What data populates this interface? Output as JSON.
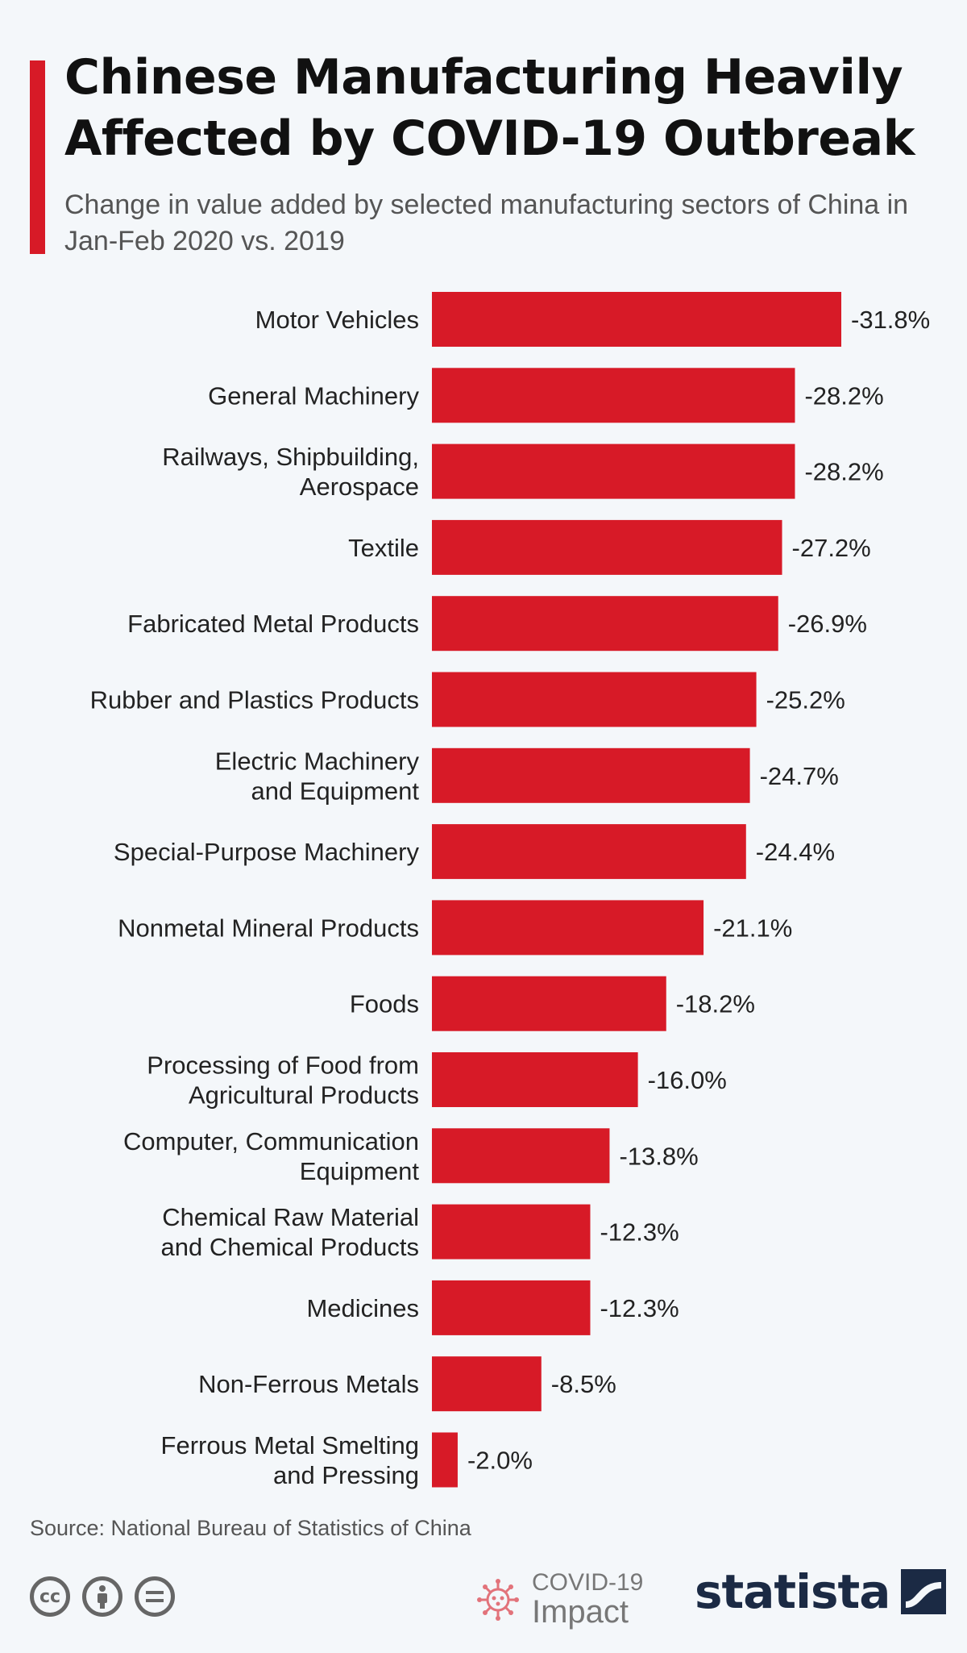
{
  "header": {
    "title": "Chinese Manufacturing Heavily Affected by COVID-19 Outbreak",
    "subtitle": "Change in value added by selected manufacturing sectors of China in Jan-Feb 2020 vs. 2019"
  },
  "chart_data": {
    "type": "bar",
    "orientation": "horizontal",
    "title": "Chinese Manufacturing Heavily Affected by COVID-19 Outbreak",
    "subtitle": "Change in value added by selected manufacturing sectors of China in Jan-Feb 2020 vs. 2019",
    "xlabel": "",
    "ylabel": "",
    "grid": false,
    "legend": "none",
    "bar_color": "#d71a27",
    "value_suffix": "%",
    "categories": [
      [
        "Motor Vehicles"
      ],
      [
        "General Machinery"
      ],
      [
        "Railways, Shipbuilding,",
        "Aerospace"
      ],
      [
        "Textile"
      ],
      [
        "Fabricated Metal Products"
      ],
      [
        "Rubber and Plastics Products"
      ],
      [
        "Electric Machinery",
        "and Equipment"
      ],
      [
        "Special-Purpose Machinery"
      ],
      [
        "Nonmetal Mineral Products"
      ],
      [
        "Foods"
      ],
      [
        "Processing of Food from",
        "Agricultural Products"
      ],
      [
        "Computer, Communication",
        "Equipment"
      ],
      [
        "Chemical Raw Material",
        "and Chemical Products"
      ],
      [
        "Medicines"
      ],
      [
        "Non-Ferrous Metals"
      ],
      [
        "Ferrous Metal Smelting",
        "and Pressing"
      ]
    ],
    "values": [
      -31.8,
      -28.2,
      -28.2,
      -27.2,
      -26.9,
      -25.2,
      -24.7,
      -24.4,
      -21.1,
      -18.2,
      -16.0,
      -13.8,
      -12.3,
      -12.3,
      -8.5,
      -2.0
    ],
    "labels": [
      "-31.8%",
      "-28.2%",
      "-28.2%",
      "-27.2%",
      "-26.9%",
      "-25.2%",
      "-24.7%",
      "-24.4%",
      "-21.1%",
      "-18.2%",
      "-16.0%",
      "-13.8%",
      "-12.3%",
      "-12.3%",
      "-8.5%",
      "-2.0%"
    ]
  },
  "footer": {
    "source": "Source: National Bureau of Statistics of China",
    "cc_icons": [
      "cc-icon",
      "attribution-icon",
      "no-derivatives-icon"
    ],
    "badge_line1": "COVID-19",
    "badge_line2": "Impact",
    "brand": "statista"
  },
  "colors": {
    "accent": "#d71a27",
    "background": "#f4f7fa",
    "brand": "#1b2a44"
  }
}
